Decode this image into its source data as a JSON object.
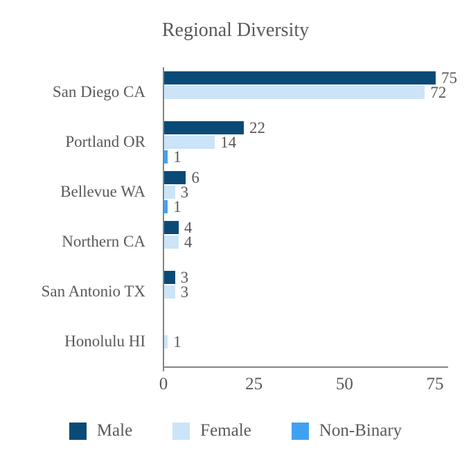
{
  "chart_data": {
    "type": "bar",
    "orientation": "horizontal",
    "title": "Regional Diversity",
    "categories": [
      "San Diego CA",
      "Portland OR",
      "Bellevue WA",
      "Northern CA",
      "San Antonio TX",
      "Honolulu HI"
    ],
    "series": [
      {
        "name": "Male",
        "color": "#0a4a77",
        "values": [
          75,
          22,
          6,
          4,
          3,
          null
        ]
      },
      {
        "name": "Female",
        "color": "#cbe4f8",
        "values": [
          72,
          14,
          3,
          4,
          3,
          1
        ]
      },
      {
        "name": "Non-Binary",
        "color": "#41a1f1",
        "values": [
          null,
          1,
          1,
          null,
          null,
          null
        ]
      }
    ],
    "x_ticks": [
      0,
      25,
      50,
      75
    ],
    "xlim": [
      0,
      78
    ],
    "grid": false,
    "legend_position": "bottom",
    "data_labels": true,
    "text_color": "#595959",
    "axis_color": "#848484"
  }
}
